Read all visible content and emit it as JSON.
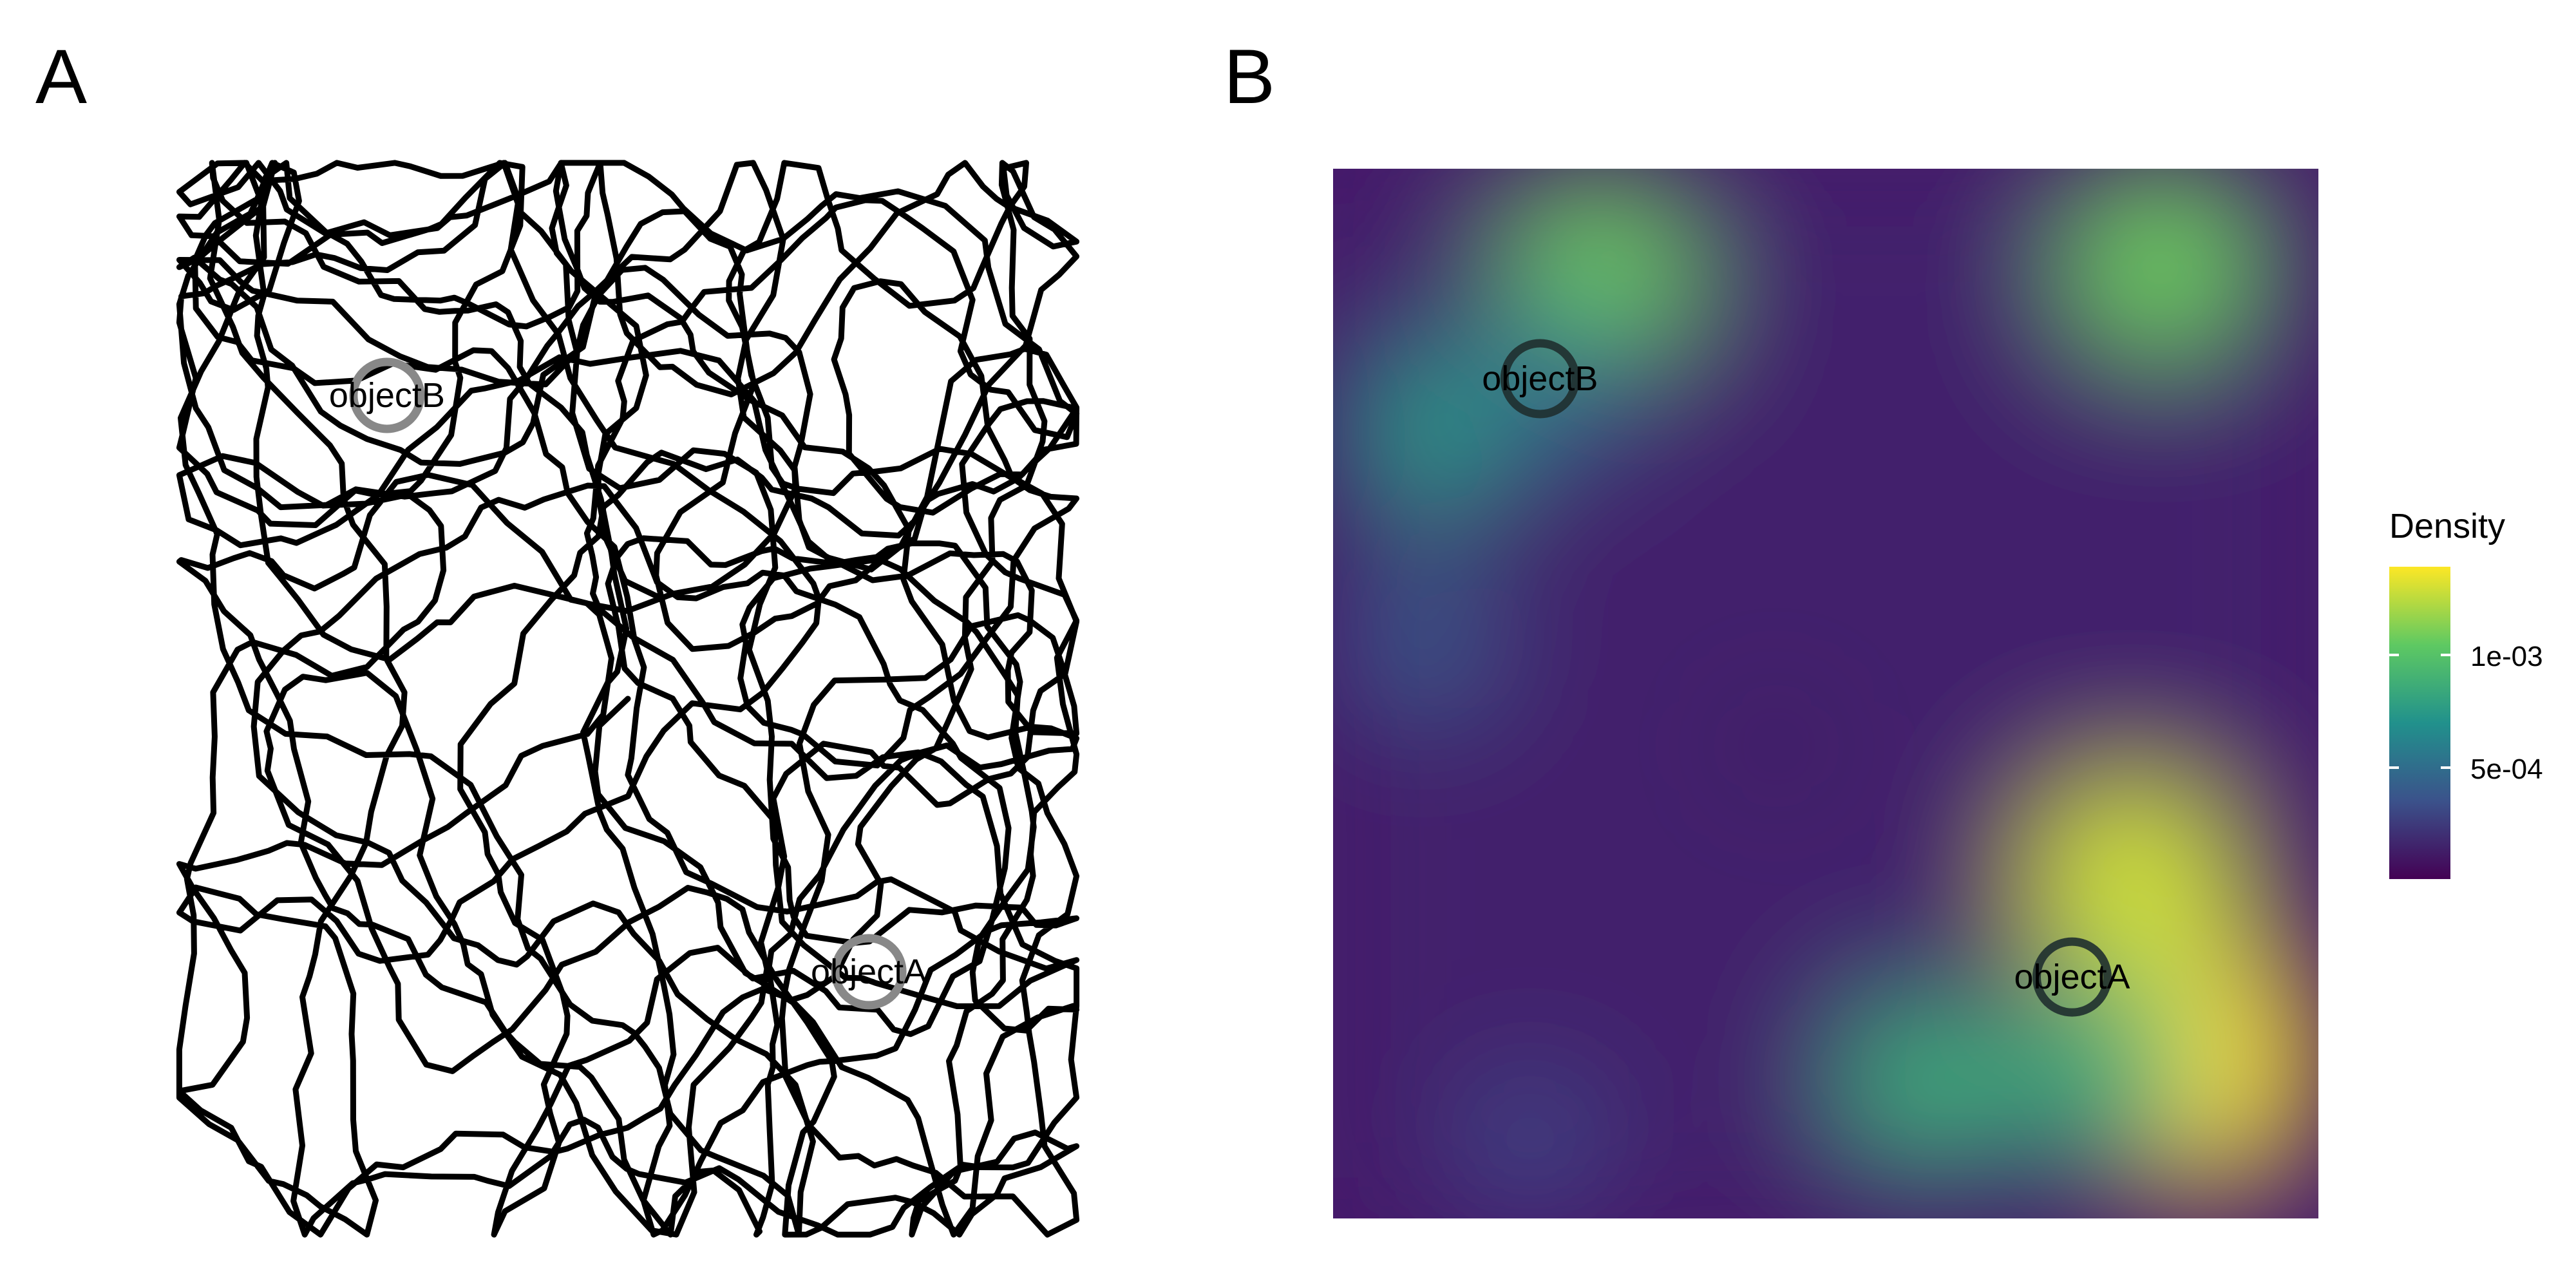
{
  "panels": {
    "a": {
      "label": "A"
    },
    "b": {
      "label": "B"
    }
  },
  "legend": {
    "title": "Density",
    "ticks": [
      "1e-03",
      "5e-04"
    ],
    "colors": [
      "#440154",
      "#3b528b",
      "#21918c",
      "#5ec962",
      "#fde725"
    ]
  },
  "chart_data": [
    {
      "type": "line",
      "panel": "A",
      "title": "",
      "xlabel": "",
      "ylabel": "",
      "grid": false,
      "arena": {
        "xlim": [
          0,
          100
        ],
        "ylim": [
          0,
          100
        ]
      },
      "objects": [
        {
          "name": "objectA",
          "x": 79,
          "y": 23
        },
        {
          "name": "objectB",
          "x": 21,
          "y": 80
        }
      ],
      "path_color": "#000000",
      "object_color": "#888888"
    },
    {
      "type": "heatmap",
      "panel": "B",
      "title": "",
      "xlabel": "",
      "ylabel": "",
      "grid": false,
      "xlim": [
        0,
        100
      ],
      "ylim": [
        0,
        100
      ],
      "legend_title": "Density",
      "legend_placement": "right",
      "value_range": [
        0.0001,
        0.0014
      ],
      "legend_ticks": [
        0.001,
        0.0005
      ],
      "legend_tick_labels": [
        "1e-03",
        "5e-04"
      ],
      "hotspots": [
        {
          "x": 87,
          "y": 15,
          "density": 0.0014
        },
        {
          "x": 81,
          "y": 32,
          "density": 0.0013
        },
        {
          "x": 78,
          "y": 14,
          "density": 0.0009
        },
        {
          "x": 60,
          "y": 13,
          "density": 0.0009
        },
        {
          "x": 27,
          "y": 90,
          "density": 0.0011
        },
        {
          "x": 84,
          "y": 91,
          "density": 0.0011
        },
        {
          "x": 10,
          "y": 75,
          "density": 0.0008
        },
        {
          "x": 22,
          "y": 80,
          "density": 0.0006
        },
        {
          "x": 9,
          "y": 55,
          "density": 0.0005
        },
        {
          "x": 20,
          "y": 7,
          "density": 0.0004
        },
        {
          "x": 45,
          "y": 45,
          "density": 0.0002
        }
      ],
      "objects": [
        {
          "name": "objectA",
          "x": 75,
          "y": 23
        },
        {
          "name": "objectB",
          "x": 21,
          "y": 80
        }
      ],
      "object_color": "#1f2f2f"
    }
  ]
}
